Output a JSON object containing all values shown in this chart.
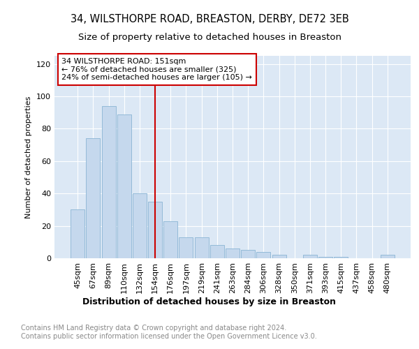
{
  "title1": "34, WILSTHORPE ROAD, BREASTON, DERBY, DE72 3EB",
  "title2": "Size of property relative to detached houses in Breaston",
  "xlabel": "Distribution of detached houses by size in Breaston",
  "ylabel": "Number of detached properties",
  "categories": [
    "45sqm",
    "67sqm",
    "89sqm",
    "110sqm",
    "132sqm",
    "154sqm",
    "176sqm",
    "197sqm",
    "219sqm",
    "241sqm",
    "263sqm",
    "284sqm",
    "306sqm",
    "328sqm",
    "350sqm",
    "371sqm",
    "393sqm",
    "415sqm",
    "437sqm",
    "458sqm",
    "480sqm"
  ],
  "values": [
    30,
    74,
    94,
    89,
    40,
    35,
    23,
    13,
    13,
    8,
    6,
    5,
    4,
    2,
    0,
    2,
    1,
    1,
    0,
    0,
    2
  ],
  "bar_color": "#c5d8ed",
  "bar_edge_color": "#8ab4d4",
  "property_line_index": 5,
  "property_line_color": "#cc0000",
  "annotation_text": "34 WILSTHORPE ROAD: 151sqm\n← 76% of detached houses are smaller (325)\n24% of semi-detached houses are larger (105) →",
  "annotation_box_color": "#ffffff",
  "annotation_box_edge": "#cc0000",
  "ylim": [
    0,
    125
  ],
  "yticks": [
    0,
    20,
    40,
    60,
    80,
    100,
    120
  ],
  "background_color": "#dce8f5",
  "footer_text": "Contains HM Land Registry data © Crown copyright and database right 2024.\nContains public sector information licensed under the Open Government Licence v3.0.",
  "title1_fontsize": 10.5,
  "title2_fontsize": 9.5,
  "xlabel_fontsize": 9,
  "ylabel_fontsize": 8,
  "tick_fontsize": 8,
  "footer_fontsize": 7,
  "annotation_fontsize": 8
}
